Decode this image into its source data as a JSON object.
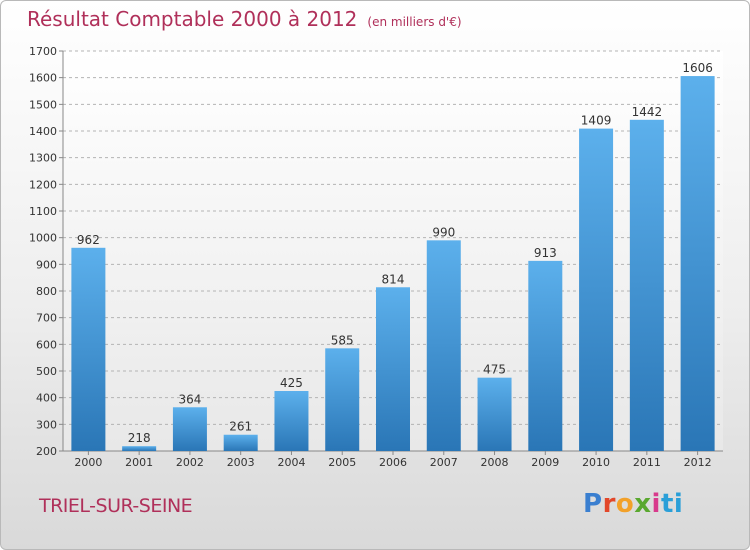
{
  "title": "Résultat Comptable 2000 à 2012",
  "subtitle": "(en milliers d'€)",
  "city": "TRIEL-SUR-SEINE",
  "logo": [
    "P",
    "r",
    "o",
    "x",
    "i",
    "ti"
  ],
  "colors": {
    "bar_top": "#5cb0ec",
    "bar_bottom": "#2a76b6",
    "title": "#b0305a"
  },
  "chart_data": {
    "type": "bar",
    "categories": [
      "2000",
      "2001",
      "2002",
      "2003",
      "2004",
      "2005",
      "2006",
      "2007",
      "2008",
      "2009",
      "2010",
      "2011",
      "2012"
    ],
    "values": [
      962,
      218,
      364,
      261,
      425,
      585,
      814,
      990,
      475,
      913,
      1409,
      1442,
      1606
    ],
    "ylim": [
      200,
      1700
    ],
    "yticks": [
      200,
      300,
      400,
      500,
      600,
      700,
      800,
      900,
      1000,
      1100,
      1200,
      1300,
      1400,
      1500,
      1600,
      1700
    ],
    "grid": true,
    "title": "Résultat Comptable 2000 à 2012",
    "xlabel": "",
    "ylabel": ""
  }
}
